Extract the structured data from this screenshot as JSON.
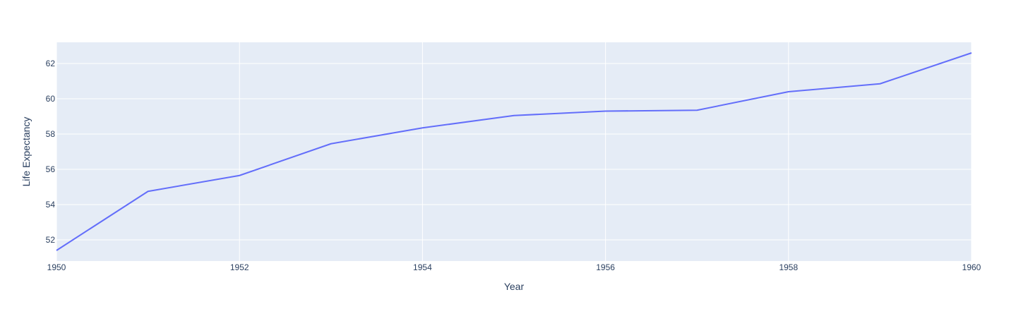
{
  "chart_data": {
    "type": "line",
    "title": "",
    "xlabel": "Year",
    "ylabel": "Life Expectancy",
    "x": [
      1950,
      1951,
      1952,
      1953,
      1954,
      1955,
      1956,
      1957,
      1958,
      1959,
      1960
    ],
    "series": [
      {
        "values": [
          51.4,
          54.75,
          55.65,
          57.45,
          58.35,
          59.05,
          59.3,
          59.35,
          60.4,
          60.85,
          62.6
        ]
      }
    ],
    "xlim": [
      1950,
      1960
    ],
    "ylim": [
      50.8,
      63.2
    ],
    "xticks": [
      1950,
      1952,
      1954,
      1956,
      1958,
      1960
    ],
    "yticks": [
      52,
      54,
      56,
      58,
      60,
      62
    ],
    "grid": true,
    "legend": "none",
    "colors": {
      "plot_background": "#E5ECF6",
      "grid": "#FFFFFF",
      "line": "#636EFA",
      "text": "#2A3F5F"
    }
  }
}
